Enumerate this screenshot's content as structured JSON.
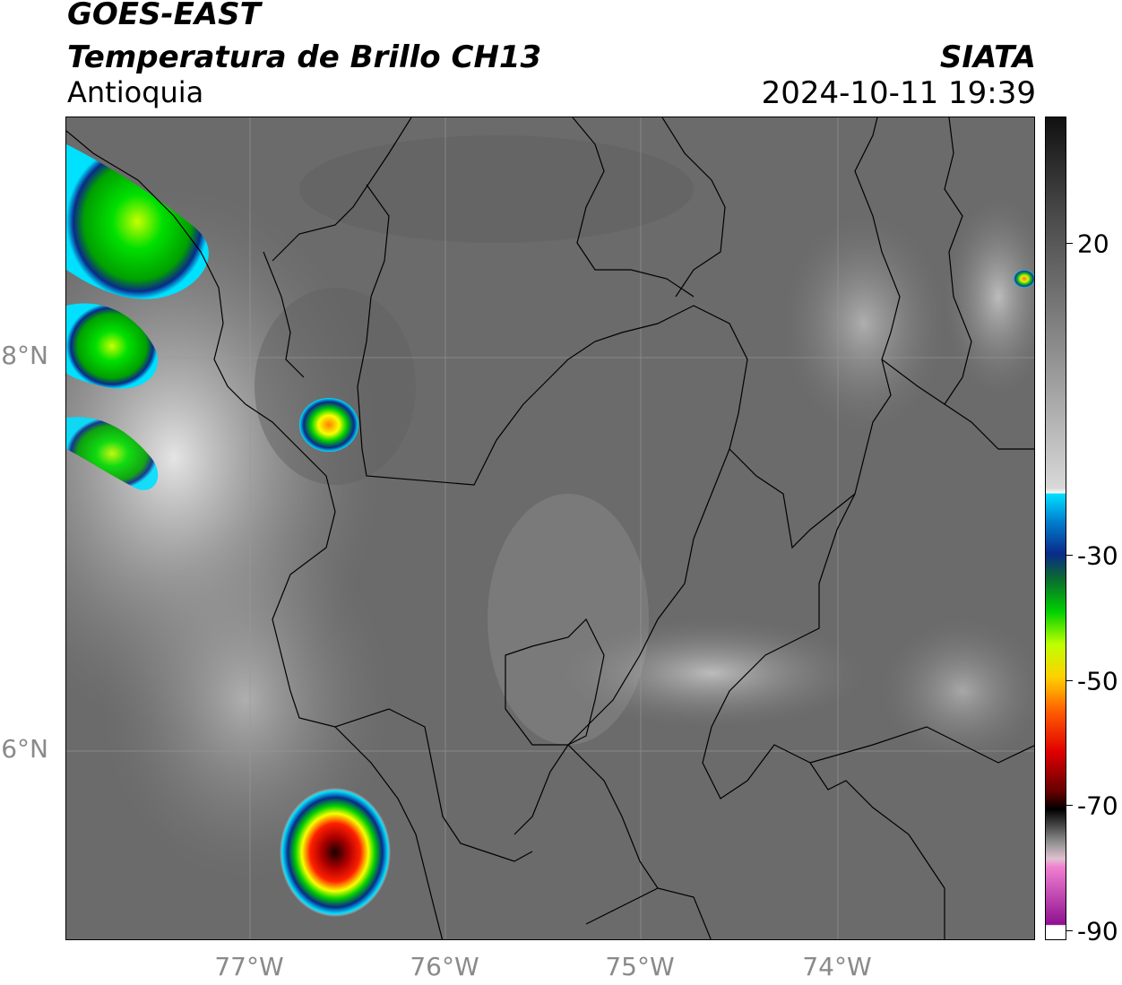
{
  "header": {
    "satellite": "GOES-EAST",
    "product": "Temperatura de Brillo CH13",
    "region": "Antioquia",
    "agency": "SIATA",
    "datetime": "2024-10-11 19:39"
  },
  "axes": {
    "lat_labels": [
      "8°N",
      "6°N"
    ],
    "lon_labels": [
      "77°W",
      "76°W",
      "75°W",
      "74°W"
    ]
  },
  "colorbar": {
    "units_hint": "°C",
    "ticks": [
      "20",
      "-30",
      "-50",
      "-70",
      "-90"
    ],
    "tick_values": [
      20,
      -30,
      -50,
      -70,
      -90
    ],
    "range": [
      -90,
      40
    ],
    "colors": {
      "warm_grey": "#5a5a5a",
      "cold_white": "#f5f5f5",
      "cyan": "#00e0ff",
      "blue": "#0a2a8a",
      "green": "#00d000",
      "yellow": "#f0ff00",
      "red": "#e00000",
      "dark_red": "#3a0000",
      "pink": "#f080d0",
      "purple": "#901090"
    }
  },
  "map_colors": {
    "background_grey": "#6e6e6e",
    "border_line": "#000000",
    "grid_line": "#9a9a9a"
  }
}
